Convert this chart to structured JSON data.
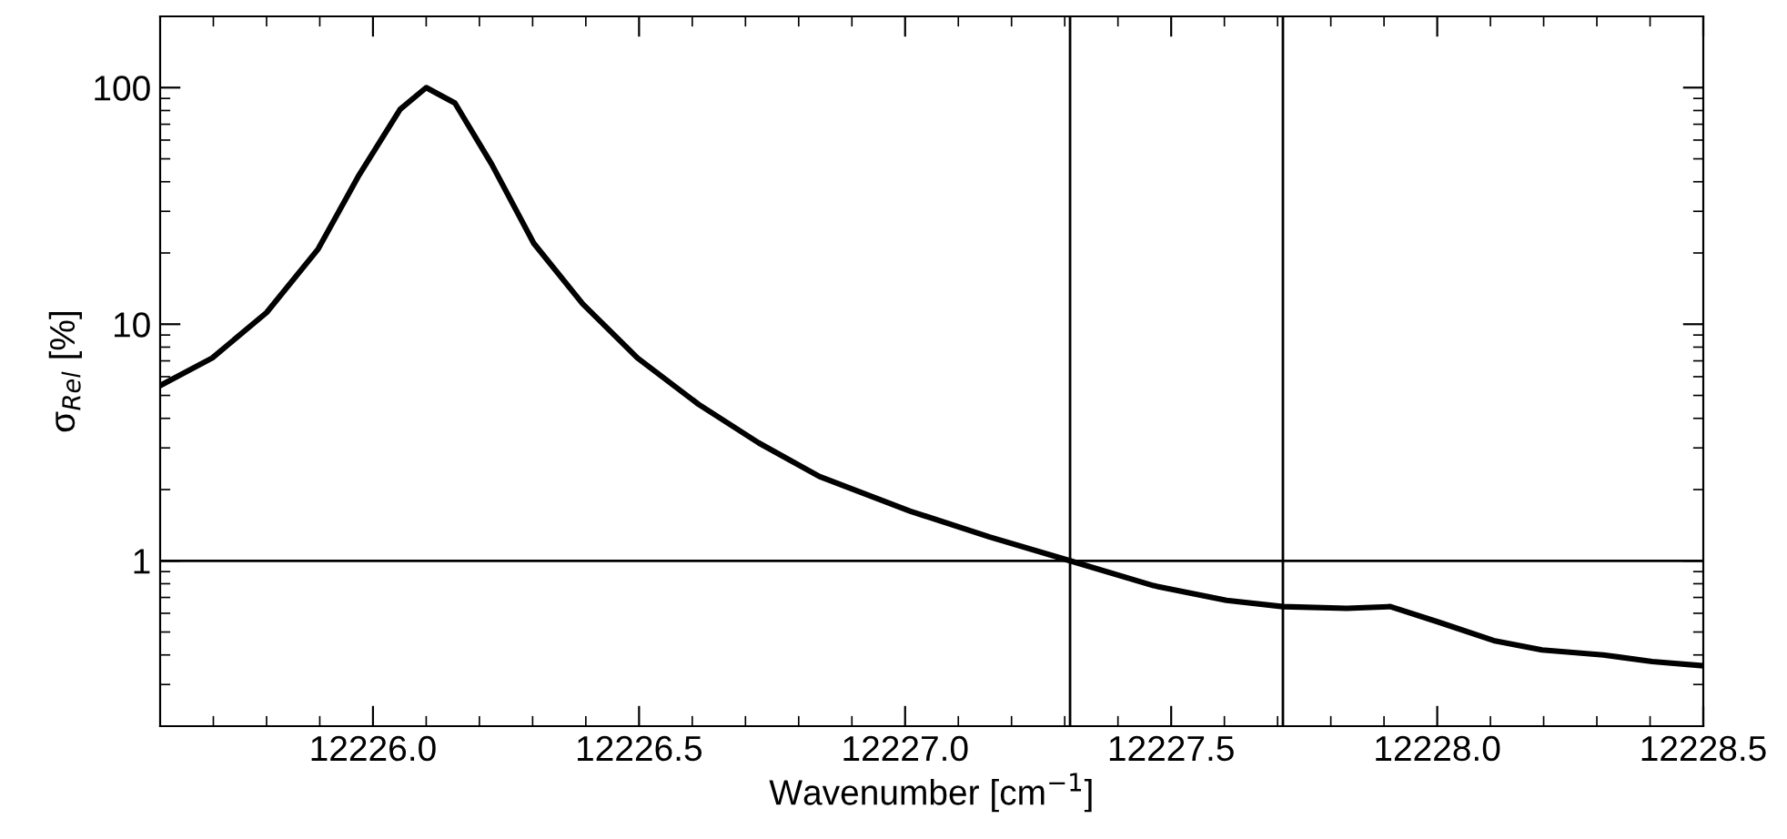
{
  "chart_data": {
    "type": "line",
    "xlabel": "Wavenumber [cm$^{−1}$]",
    "ylabel": "σ$_{Rel}$ [%]",
    "log": "y",
    "xlim": [
      12225.6,
      12228.5
    ],
    "ylim": [
      0.2,
      200
    ],
    "xticks": [
      {
        "value": 12226.0,
        "label": "12226.0"
      },
      {
        "value": 12226.5,
        "label": "12226.5"
      },
      {
        "value": 12227.0,
        "label": "12227.0"
      },
      {
        "value": 12227.5,
        "label": "12227.5"
      },
      {
        "value": 12228.0,
        "label": "12228.0"
      },
      {
        "value": 12228.5,
        "label": "12228.5"
      }
    ],
    "yticks": [
      1,
      10,
      100
    ],
    "grid": false,
    "marker": "none",
    "line_style": "solid",
    "series": [
      {
        "color": "#000000",
        "x": [
          12225.6,
          12225.698,
          12225.8,
          12225.897,
          12225.972,
          12226.051,
          12226.1,
          12226.154,
          12226.223,
          12226.302,
          12226.394,
          12226.497,
          12226.611,
          12226.725,
          12226.839,
          12227.01,
          12227.159,
          12227.31,
          12227.467,
          12227.604,
          12227.71,
          12227.83,
          12227.912,
          12228.003,
          12228.106,
          12228.197,
          12228.312,
          12228.404,
          12228.5
        ],
        "values": [
          5.5,
          7.2,
          11.2,
          20.8,
          42,
          81,
          100,
          86,
          47.5,
          22,
          12.2,
          7.2,
          4.6,
          3.15,
          2.27,
          1.62,
          1.26,
          1.0,
          0.785,
          0.68,
          0.64,
          0.63,
          0.64,
          0.55,
          0.46,
          0.42,
          0.4,
          0.375,
          0.36
        ]
      }
    ],
    "ref_lines": [
      {
        "axis": "y",
        "value": 1,
        "color": "#000000"
      },
      {
        "axis": "x",
        "value": 12227.31,
        "color": "#000000"
      },
      {
        "axis": "x",
        "value": 12227.71,
        "color": "#000000"
      }
    ]
  }
}
